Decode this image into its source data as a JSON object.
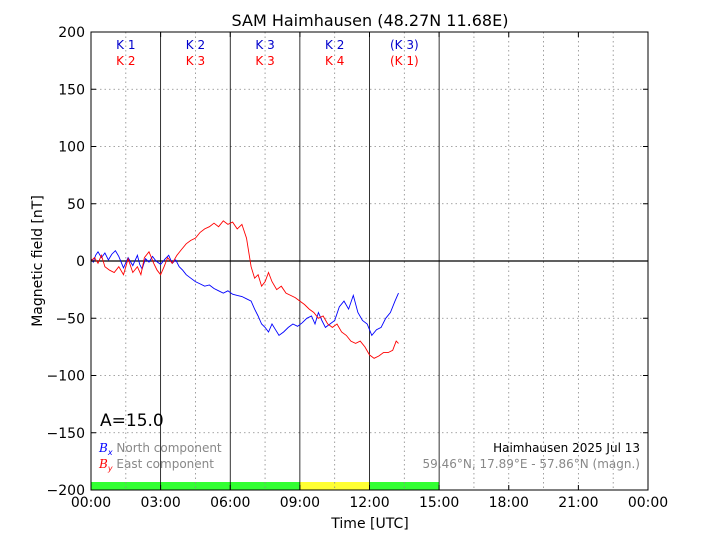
{
  "chart_data": {
    "type": "line",
    "title": "SAM Haimhausen (48.27N 11.68E)",
    "xlabel": "Time [UTC]",
    "ylabel": "Magnetic field [nT]",
    "xlim": [
      "00:00",
      "24:00"
    ],
    "ylim": [
      -200,
      200
    ],
    "x_unit": "hours UTC",
    "x_ticks": [
      {
        "x": 0,
        "label": "00:00"
      },
      {
        "x": 3,
        "label": "03:00"
      },
      {
        "x": 6,
        "label": "06:00"
      },
      {
        "x": 9,
        "label": "09:00"
      },
      {
        "x": 12,
        "label": "12:00"
      },
      {
        "x": 15,
        "label": "15:00"
      },
      {
        "x": 18,
        "label": "18:00"
      },
      {
        "x": 21,
        "label": "21:00"
      },
      {
        "x": 24,
        "label": "00:00"
      }
    ],
    "y_ticks": [
      200,
      150,
      100,
      50,
      0,
      -50,
      -100,
      -150,
      -200
    ],
    "y_tick_labels": [
      "200",
      "150",
      "100",
      "50",
      "0",
      "−50",
      "−100",
      "−150",
      "−200"
    ],
    "grid": true,
    "legend_placement": "bottom-left",
    "series": [
      {
        "name": "North component",
        "symbol": "B",
        "subscript": "x",
        "color": "#0000ff",
        "x": [
          0.0,
          0.1,
          0.2,
          0.3,
          0.45,
          0.6,
          0.75,
          0.9,
          1.05,
          1.2,
          1.4,
          1.6,
          1.8,
          2.0,
          2.1,
          2.2,
          2.35,
          2.5,
          2.65,
          2.8,
          3.0,
          3.2,
          3.35,
          3.5,
          3.65,
          3.8,
          3.95,
          4.1,
          4.3,
          4.5,
          4.7,
          4.9,
          5.1,
          5.3,
          5.5,
          5.7,
          5.9,
          6.1,
          6.3,
          6.5,
          6.7,
          6.9,
          7.05,
          7.2,
          7.35,
          7.5,
          7.65,
          7.8,
          7.95,
          8.1,
          8.3,
          8.5,
          8.7,
          8.9,
          9.1,
          9.3,
          9.5,
          9.65,
          9.8,
          9.95,
          10.1,
          10.3,
          10.5,
          10.7,
          10.9,
          11.1,
          11.3,
          11.5,
          11.7,
          11.9,
          12.1,
          12.3,
          12.5,
          12.7,
          12.9,
          13.1,
          13.25
        ],
        "y": [
          2,
          -1,
          5,
          8,
          3,
          7,
          1,
          6,
          9,
          4,
          -6,
          3,
          -4,
          5,
          -3,
          -7,
          2,
          -1,
          4,
          0,
          -3,
          2,
          5,
          -2,
          1,
          -5,
          -8,
          -12,
          -15,
          -18,
          -20,
          -22,
          -21,
          -24,
          -26,
          -28,
          -26,
          -29,
          -30,
          -31,
          -33,
          -35,
          -42,
          -48,
          -55,
          -58,
          -62,
          -55,
          -60,
          -65,
          -62,
          -58,
          -55,
          -57,
          -54,
          -50,
          -48,
          -55,
          -45,
          -52,
          -58,
          -55,
          -52,
          -40,
          -35,
          -42,
          -30,
          -45,
          -52,
          -55,
          -65,
          -60,
          -58,
          -50,
          -45,
          -35,
          -28
        ]
      },
      {
        "name": "East component",
        "symbol": "B",
        "subscript": "y",
        "color": "#ff0000",
        "x": [
          0.0,
          0.15,
          0.3,
          0.45,
          0.6,
          0.8,
          1.0,
          1.2,
          1.4,
          1.6,
          1.8,
          2.0,
          2.15,
          2.3,
          2.5,
          2.7,
          2.85,
          3.0,
          3.15,
          3.3,
          3.5,
          3.7,
          3.9,
          4.1,
          4.3,
          4.5,
          4.7,
          4.9,
          5.1,
          5.3,
          5.5,
          5.7,
          5.9,
          6.1,
          6.3,
          6.5,
          6.7,
          6.9,
          7.05,
          7.2,
          7.35,
          7.5,
          7.65,
          7.8,
          8.0,
          8.2,
          8.4,
          8.6,
          8.8,
          9.0,
          9.2,
          9.4,
          9.6,
          9.8,
          10.0,
          10.2,
          10.4,
          10.6,
          10.8,
          11.0,
          11.2,
          11.4,
          11.6,
          11.8,
          12.0,
          12.2,
          12.4,
          12.6,
          12.8,
          13.0,
          13.15,
          13.25
        ],
        "y": [
          0,
          3,
          -2,
          5,
          -5,
          -8,
          -10,
          -5,
          -12,
          2,
          -10,
          -5,
          -12,
          3,
          8,
          -2,
          -8,
          -12,
          -5,
          3,
          -2,
          5,
          10,
          15,
          18,
          20,
          25,
          28,
          30,
          33,
          30,
          35,
          32,
          34,
          28,
          32,
          20,
          -5,
          -15,
          -12,
          -22,
          -18,
          -10,
          -18,
          -25,
          -22,
          -28,
          -30,
          -32,
          -35,
          -38,
          -42,
          -45,
          -50,
          -48,
          -55,
          -58,
          -55,
          -62,
          -65,
          -70,
          -72,
          -70,
          -75,
          -82,
          -85,
          -83,
          -80,
          -80,
          -78,
          -70,
          -72
        ]
      }
    ],
    "k_index_rows": [
      {
        "series": "North component",
        "color": "#0000cc",
        "labels": [
          {
            "x": 1.5,
            "text": "K 1"
          },
          {
            "x": 4.5,
            "text": "K 2"
          },
          {
            "x": 7.5,
            "text": "K 3"
          },
          {
            "x": 10.5,
            "text": "K 2"
          },
          {
            "x": 13.5,
            "text": "(K 3)"
          }
        ]
      },
      {
        "series": "East component",
        "color": "#ff0000",
        "labels": [
          {
            "x": 1.5,
            "text": "K 2"
          },
          {
            "x": 4.5,
            "text": "K 3"
          },
          {
            "x": 7.5,
            "text": "K 3"
          },
          {
            "x": 10.5,
            "text": "K 4"
          },
          {
            "x": 13.5,
            "text": "(K 1)"
          }
        ]
      }
    ],
    "activity_bar": [
      {
        "start": 0,
        "end": 9,
        "color": "#33ff33"
      },
      {
        "start": 9,
        "end": 12,
        "color": "#ffff33"
      },
      {
        "start": 12,
        "end": 15,
        "color": "#33ff33"
      }
    ],
    "annotations": {
      "a_index": "A=15.0",
      "station_date": "Haimhausen 2025 Jul 13",
      "coordinates": "59.46°N, 17.89°E - 57.86°N (magn.)"
    }
  }
}
